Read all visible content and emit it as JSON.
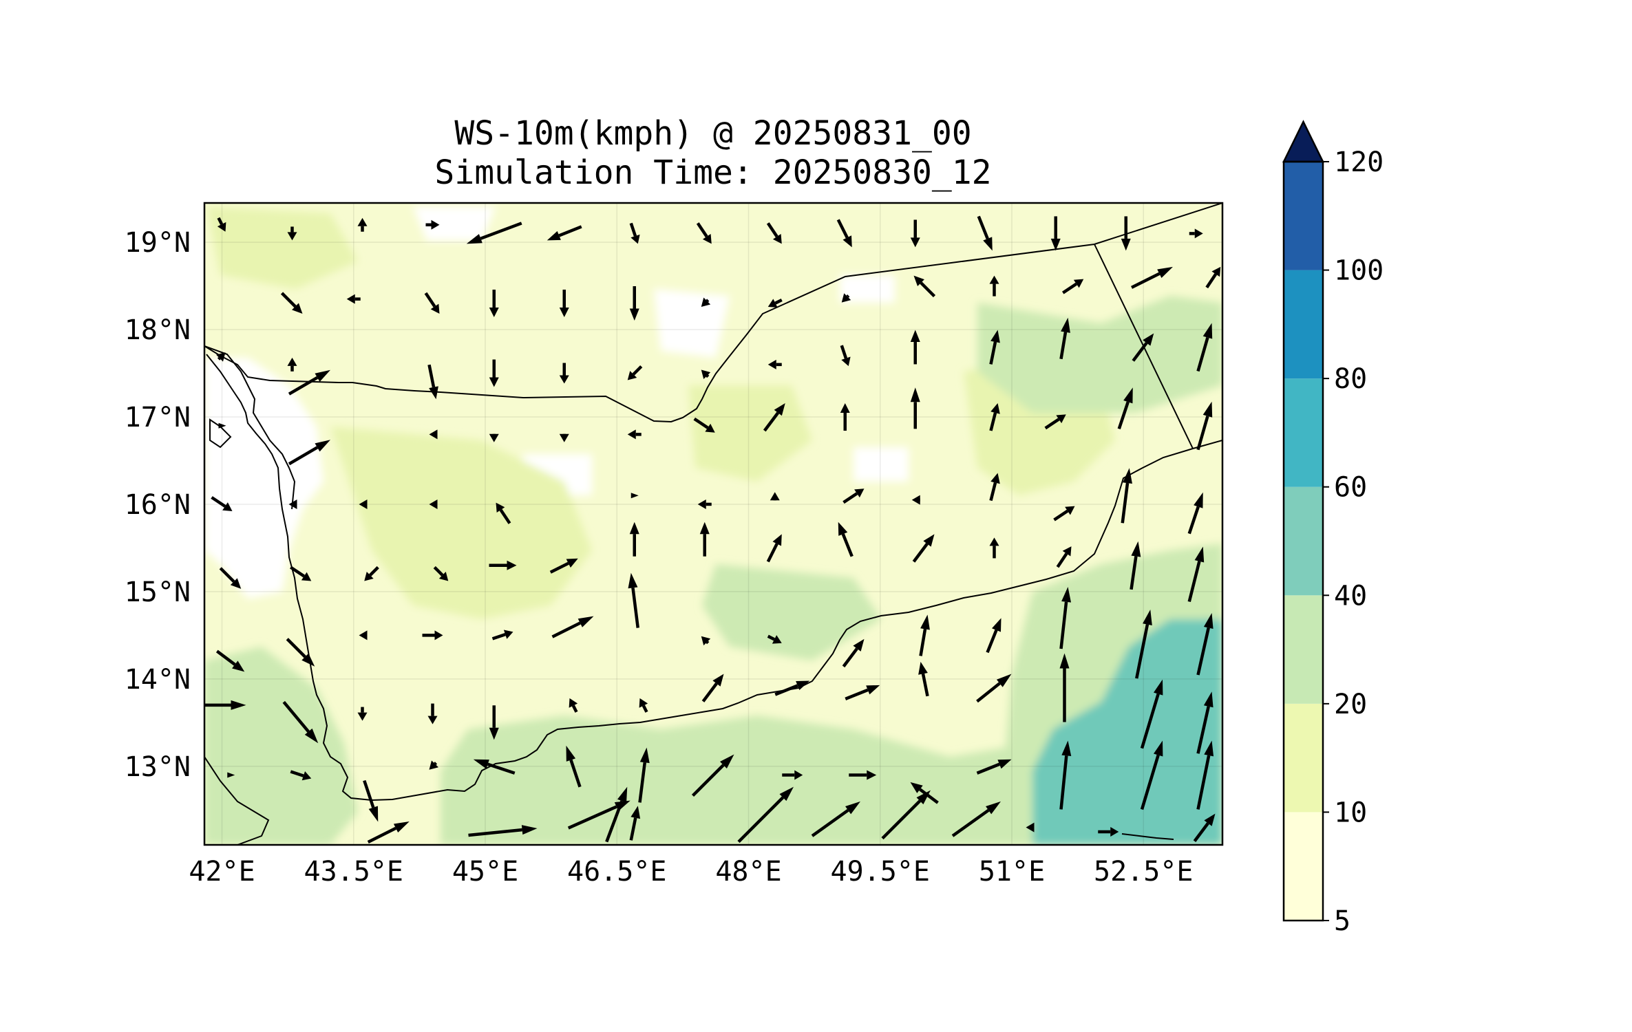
{
  "title": {
    "line1": "WS-10m(kmph) @ 20250831_00",
    "line2": "Simulation Time: 20250830_12"
  },
  "map": {
    "lon_range": [
      41.8,
      53.4
    ],
    "lat_range": [
      12.1,
      19.45
    ],
    "lon_ticks": [
      "42°E",
      "43.5°E",
      "45°E",
      "46.5°E",
      "48°E",
      "49.5°E",
      "51°E",
      "52.5°E"
    ],
    "lat_ticks": [
      "19°N",
      "18°N",
      "17°N",
      "16°N",
      "15°N",
      "14°N",
      "13°N"
    ],
    "grid": true
  },
  "colorbar": {
    "levels": [
      "5",
      "10",
      "20",
      "40",
      "60",
      "80",
      "100",
      "120"
    ],
    "colors": [
      "#ffffd9",
      "#edf8b1",
      "#c7e9b4",
      "#7fcdbb",
      "#41b6c4",
      "#1d91c0",
      "#225ea8",
      "#0c2c84"
    ],
    "extend_color": "#081d58",
    "extend": "max"
  },
  "field_colors": {
    "white": "#ffffff",
    "low": "#f7fbd0",
    "mid": "#e8f4b0",
    "high": "#cdeab3",
    "peak": "#70c9b9"
  },
  "arrow_color": "#000000",
  "chart_data": {
    "type": "heatmap",
    "title": "WS-10m(kmph) @ 20250831_00",
    "subtitle": "Simulation Time: 20250830_12",
    "xlabel": "",
    "ylabel": "",
    "xlim": [
      41.8,
      53.4
    ],
    "ylim": [
      12.1,
      19.45
    ],
    "colorbar_levels": [
      5,
      10,
      20,
      40,
      60,
      80,
      100,
      120
    ],
    "wind_vectors": [
      {
        "lon": 42.0,
        "lat": 19.2,
        "u": 0.1,
        "v": -0.2
      },
      {
        "lon": 42.8,
        "lat": 19.1,
        "u": 0.0,
        "v": -0.2
      },
      {
        "lon": 43.6,
        "lat": 19.2,
        "u": 0.0,
        "v": 0.2
      },
      {
        "lon": 44.4,
        "lat": 19.2,
        "u": 0.2,
        "v": 0.0
      },
      {
        "lon": 45.1,
        "lat": 19.1,
        "u": -0.8,
        "v": -0.3
      },
      {
        "lon": 45.9,
        "lat": 19.1,
        "u": -0.5,
        "v": -0.2
      },
      {
        "lon": 46.7,
        "lat": 19.1,
        "u": 0.1,
        "v": -0.3
      },
      {
        "lon": 47.5,
        "lat": 19.1,
        "u": 0.2,
        "v": -0.3
      },
      {
        "lon": 48.3,
        "lat": 19.1,
        "u": 0.2,
        "v": -0.3
      },
      {
        "lon": 49.1,
        "lat": 19.1,
        "u": 0.2,
        "v": -0.4
      },
      {
        "lon": 49.9,
        "lat": 19.1,
        "u": 0.0,
        "v": -0.4
      },
      {
        "lon": 50.7,
        "lat": 19.1,
        "u": 0.2,
        "v": -0.5
      },
      {
        "lon": 51.5,
        "lat": 19.1,
        "u": 0.0,
        "v": -0.5
      },
      {
        "lon": 52.3,
        "lat": 19.1,
        "u": 0.0,
        "v": -0.5
      },
      {
        "lon": 53.1,
        "lat": 19.1,
        "u": 0.2,
        "v": 0.0
      },
      {
        "lon": 42.8,
        "lat": 18.3,
        "u": 0.3,
        "v": -0.3
      },
      {
        "lon": 43.5,
        "lat": 18.35,
        "u": -0.2,
        "v": 0.0
      },
      {
        "lon": 44.4,
        "lat": 18.3,
        "u": 0.2,
        "v": -0.3
      },
      {
        "lon": 45.1,
        "lat": 18.3,
        "u": 0.0,
        "v": -0.4
      },
      {
        "lon": 45.9,
        "lat": 18.3,
        "u": 0.0,
        "v": -0.4
      },
      {
        "lon": 46.7,
        "lat": 18.3,
        "u": 0.0,
        "v": -0.5
      },
      {
        "lon": 47.5,
        "lat": 18.3,
        "u": -0.1,
        "v": -0.1
      },
      {
        "lon": 48.3,
        "lat": 18.3,
        "u": -0.2,
        "v": -0.1
      },
      {
        "lon": 49.1,
        "lat": 18.35,
        "u": -0.1,
        "v": -0.1
      },
      {
        "lon": 50.0,
        "lat": 18.5,
        "u": -0.3,
        "v": 0.3
      },
      {
        "lon": 50.8,
        "lat": 18.5,
        "u": 0.0,
        "v": 0.3
      },
      {
        "lon": 51.7,
        "lat": 18.5,
        "u": 0.3,
        "v": 0.2
      },
      {
        "lon": 52.6,
        "lat": 18.6,
        "u": 0.6,
        "v": 0.3
      },
      {
        "lon": 53.3,
        "lat": 18.6,
        "u": 0.2,
        "v": 0.3
      },
      {
        "lon": 42.0,
        "lat": 17.7,
        "u": 0.1,
        "v": 0.1
      },
      {
        "lon": 42.8,
        "lat": 17.6,
        "u": 0.0,
        "v": 0.2
      },
      {
        "lon": 43.0,
        "lat": 17.4,
        "u": 0.6,
        "v": 0.35
      },
      {
        "lon": 44.4,
        "lat": 17.4,
        "u": 0.1,
        "v": -0.5
      },
      {
        "lon": 45.1,
        "lat": 17.5,
        "u": 0.0,
        "v": -0.4
      },
      {
        "lon": 45.9,
        "lat": 17.5,
        "u": 0.0,
        "v": -0.3
      },
      {
        "lon": 46.7,
        "lat": 17.5,
        "u": -0.2,
        "v": -0.2
      },
      {
        "lon": 47.5,
        "lat": 17.5,
        "u": -0.1,
        "v": 0.1
      },
      {
        "lon": 48.3,
        "lat": 17.6,
        "u": -0.2,
        "v": 0.0
      },
      {
        "lon": 49.1,
        "lat": 17.7,
        "u": 0.1,
        "v": -0.3
      },
      {
        "lon": 49.9,
        "lat": 17.8,
        "u": 0.0,
        "v": 0.5
      },
      {
        "lon": 50.8,
        "lat": 17.8,
        "u": 0.1,
        "v": 0.5
      },
      {
        "lon": 51.6,
        "lat": 17.9,
        "u": 0.1,
        "v": 0.6
      },
      {
        "lon": 52.5,
        "lat": 17.8,
        "u": 0.3,
        "v": 0.4
      },
      {
        "lon": 53.2,
        "lat": 17.8,
        "u": 0.2,
        "v": 0.7
      },
      {
        "lon": 42.0,
        "lat": 16.9,
        "u": 0.0,
        "v": 0.0
      },
      {
        "lon": 43.0,
        "lat": 16.6,
        "u": 0.6,
        "v": 0.35
      },
      {
        "lon": 44.4,
        "lat": 16.8,
        "u": -0.1,
        "v": 0.0
      },
      {
        "lon": 45.1,
        "lat": 16.75,
        "u": 0.0,
        "v": -0.1
      },
      {
        "lon": 45.9,
        "lat": 16.75,
        "u": 0.0,
        "v": -0.1
      },
      {
        "lon": 46.7,
        "lat": 16.8,
        "u": -0.2,
        "v": 0.0
      },
      {
        "lon": 47.5,
        "lat": 16.9,
        "u": 0.3,
        "v": -0.2
      },
      {
        "lon": 48.3,
        "lat": 17.0,
        "u": 0.3,
        "v": 0.4
      },
      {
        "lon": 49.1,
        "lat": 17.0,
        "u": 0.0,
        "v": 0.4
      },
      {
        "lon": 49.9,
        "lat": 17.1,
        "u": 0.0,
        "v": 0.6
      },
      {
        "lon": 50.8,
        "lat": 17.0,
        "u": 0.1,
        "v": 0.4
      },
      {
        "lon": 51.5,
        "lat": 16.95,
        "u": 0.3,
        "v": 0.2
      },
      {
        "lon": 52.3,
        "lat": 17.1,
        "u": 0.2,
        "v": 0.6
      },
      {
        "lon": 53.2,
        "lat": 16.9,
        "u": 0.2,
        "v": 0.7
      },
      {
        "lon": 42.0,
        "lat": 16.0,
        "u": 0.3,
        "v": -0.2
      },
      {
        "lon": 42.8,
        "lat": 16.0,
        "u": -0.1,
        "v": 0.0
      },
      {
        "lon": 43.6,
        "lat": 16.0,
        "u": -0.1,
        "v": 0.0
      },
      {
        "lon": 44.4,
        "lat": 16.0,
        "u": -0.1,
        "v": 0.0
      },
      {
        "lon": 45.2,
        "lat": 15.9,
        "u": -0.2,
        "v": 0.3
      },
      {
        "lon": 46.7,
        "lat": 16.1,
        "u": 0.0,
        "v": 0.0
      },
      {
        "lon": 47.5,
        "lat": 16.0,
        "u": -0.2,
        "v": 0.0
      },
      {
        "lon": 48.3,
        "lat": 16.1,
        "u": 0.0,
        "v": 0.1
      },
      {
        "lon": 49.2,
        "lat": 16.1,
        "u": 0.3,
        "v": 0.2
      },
      {
        "lon": 49.9,
        "lat": 16.05,
        "u": -0.1,
        "v": 0.0
      },
      {
        "lon": 50.8,
        "lat": 16.2,
        "u": 0.1,
        "v": 0.4
      },
      {
        "lon": 51.6,
        "lat": 15.9,
        "u": 0.3,
        "v": 0.2
      },
      {
        "lon": 52.3,
        "lat": 16.1,
        "u": 0.1,
        "v": 0.8
      },
      {
        "lon": 53.1,
        "lat": 15.9,
        "u": 0.2,
        "v": 0.6
      },
      {
        "lon": 42.1,
        "lat": 15.15,
        "u": 0.3,
        "v": -0.3
      },
      {
        "lon": 42.9,
        "lat": 15.2,
        "u": 0.3,
        "v": -0.2
      },
      {
        "lon": 43.7,
        "lat": 15.2,
        "u": -0.2,
        "v": -0.2
      },
      {
        "lon": 44.5,
        "lat": 15.2,
        "u": 0.2,
        "v": -0.2
      },
      {
        "lon": 45.2,
        "lat": 15.3,
        "u": 0.4,
        "v": 0.0
      },
      {
        "lon": 45.9,
        "lat": 15.3,
        "u": 0.4,
        "v": 0.2
      },
      {
        "lon": 46.7,
        "lat": 15.6,
        "u": 0.0,
        "v": 0.5
      },
      {
        "lon": 47.5,
        "lat": 15.6,
        "u": 0.0,
        "v": 0.5
      },
      {
        "lon": 48.3,
        "lat": 15.5,
        "u": 0.2,
        "v": 0.4
      },
      {
        "lon": 49.1,
        "lat": 15.6,
        "u": -0.2,
        "v": 0.5
      },
      {
        "lon": 50.0,
        "lat": 15.5,
        "u": 0.3,
        "v": 0.4
      },
      {
        "lon": 50.8,
        "lat": 15.5,
        "u": 0.0,
        "v": 0.3
      },
      {
        "lon": 51.6,
        "lat": 15.4,
        "u": 0.2,
        "v": 0.3
      },
      {
        "lon": 52.4,
        "lat": 15.3,
        "u": 0.1,
        "v": 0.7
      },
      {
        "lon": 53.1,
        "lat": 15.2,
        "u": 0.2,
        "v": 0.8
      },
      {
        "lon": 42.1,
        "lat": 14.2,
        "u": 0.4,
        "v": -0.3
      },
      {
        "lon": 42.9,
        "lat": 14.3,
        "u": 0.4,
        "v": -0.4
      },
      {
        "lon": 43.6,
        "lat": 14.5,
        "u": -0.1,
        "v": 0.0
      },
      {
        "lon": 44.4,
        "lat": 14.5,
        "u": 0.3,
        "v": 0.0
      },
      {
        "lon": 45.2,
        "lat": 14.5,
        "u": 0.3,
        "v": 0.1
      },
      {
        "lon": 46.0,
        "lat": 14.6,
        "u": 0.6,
        "v": 0.3
      },
      {
        "lon": 46.7,
        "lat": 14.9,
        "u": -0.1,
        "v": 0.8
      },
      {
        "lon": 47.5,
        "lat": 14.45,
        "u": -0.1,
        "v": 0.1
      },
      {
        "lon": 48.3,
        "lat": 14.45,
        "u": 0.2,
        "v": -0.1
      },
      {
        "lon": 49.2,
        "lat": 14.3,
        "u": 0.3,
        "v": 0.4
      },
      {
        "lon": 50.0,
        "lat": 14.5,
        "u": 0.1,
        "v": 0.6
      },
      {
        "lon": 50.8,
        "lat": 14.5,
        "u": 0.2,
        "v": 0.5
      },
      {
        "lon": 51.6,
        "lat": 14.7,
        "u": 0.1,
        "v": 0.9
      },
      {
        "lon": 52.5,
        "lat": 14.4,
        "u": 0.2,
        "v": 1.0
      },
      {
        "lon": 53.2,
        "lat": 14.4,
        "u": 0.2,
        "v": 0.9
      },
      {
        "lon": 42.0,
        "lat": 13.7,
        "u": 0.7,
        "v": 0.0
      },
      {
        "lon": 42.9,
        "lat": 13.5,
        "u": 0.5,
        "v": -0.6
      },
      {
        "lon": 43.6,
        "lat": 13.6,
        "u": 0.0,
        "v": -0.2
      },
      {
        "lon": 44.4,
        "lat": 13.6,
        "u": 0.0,
        "v": -0.3
      },
      {
        "lon": 45.1,
        "lat": 13.5,
        "u": 0.0,
        "v": -0.5
      },
      {
        "lon": 46.0,
        "lat": 13.7,
        "u": -0.1,
        "v": 0.2
      },
      {
        "lon": 46.8,
        "lat": 13.7,
        "u": -0.1,
        "v": 0.2
      },
      {
        "lon": 47.6,
        "lat": 13.9,
        "u": 0.3,
        "v": 0.4
      },
      {
        "lon": 48.5,
        "lat": 13.9,
        "u": 0.5,
        "v": 0.2
      },
      {
        "lon": 49.3,
        "lat": 13.85,
        "u": 0.5,
        "v": 0.2
      },
      {
        "lon": 50.0,
        "lat": 14.0,
        "u": -0.1,
        "v": 0.5
      },
      {
        "lon": 50.8,
        "lat": 13.9,
        "u": 0.5,
        "v": 0.4
      },
      {
        "lon": 51.6,
        "lat": 13.9,
        "u": 0.0,
        "v": 1.0
      },
      {
        "lon": 52.6,
        "lat": 13.6,
        "u": 0.3,
        "v": 1.0
      },
      {
        "lon": 53.2,
        "lat": 13.5,
        "u": 0.2,
        "v": 0.9
      },
      {
        "lon": 42.1,
        "lat": 12.9,
        "u": 0.0,
        "v": 0.0
      },
      {
        "lon": 42.9,
        "lat": 12.9,
        "u": 0.3,
        "v": -0.1
      },
      {
        "lon": 43.7,
        "lat": 12.6,
        "u": 0.2,
        "v": -0.6
      },
      {
        "lon": 44.4,
        "lat": 13.0,
        "u": -0.1,
        "v": -0.1
      },
      {
        "lon": 45.1,
        "lat": 13.0,
        "u": -0.6,
        "v": 0.2
      },
      {
        "lon": 46.0,
        "lat": 13.0,
        "u": -0.2,
        "v": 0.6
      },
      {
        "lon": 46.8,
        "lat": 12.9,
        "u": 0.1,
        "v": 0.8
      },
      {
        "lon": 47.6,
        "lat": 12.9,
        "u": 0.6,
        "v": 0.6
      },
      {
        "lon": 48.5,
        "lat": 12.9,
        "u": 0.3,
        "v": 0.0
      },
      {
        "lon": 49.3,
        "lat": 12.9,
        "u": 0.4,
        "v": 0.0
      },
      {
        "lon": 50.0,
        "lat": 12.7,
        "u": -0.4,
        "v": 0.3
      },
      {
        "lon": 50.8,
        "lat": 13.0,
        "u": 0.5,
        "v": 0.2
      },
      {
        "lon": 51.6,
        "lat": 12.9,
        "u": 0.1,
        "v": 1.0
      },
      {
        "lon": 52.6,
        "lat": 12.9,
        "u": 0.3,
        "v": 1.0
      },
      {
        "lon": 53.2,
        "lat": 12.9,
        "u": 0.2,
        "v": 1.0
      },
      {
        "lon": 43.9,
        "lat": 12.25,
        "u": 0.6,
        "v": 0.3
      },
      {
        "lon": 45.2,
        "lat": 12.25,
        "u": 1.0,
        "v": 0.1
      },
      {
        "lon": 46.3,
        "lat": 12.45,
        "u": 0.9,
        "v": 0.4
      },
      {
        "lon": 46.5,
        "lat": 12.45,
        "u": 0.3,
        "v": 0.8
      },
      {
        "lon": 46.7,
        "lat": 12.35,
        "u": 0.1,
        "v": 0.5
      },
      {
        "lon": 48.2,
        "lat": 12.45,
        "u": 0.8,
        "v": 0.8
      },
      {
        "lon": 49.0,
        "lat": 12.4,
        "u": 0.7,
        "v": 0.5
      },
      {
        "lon": 49.8,
        "lat": 12.45,
        "u": 0.7,
        "v": 0.7
      },
      {
        "lon": 50.6,
        "lat": 12.4,
        "u": 0.7,
        "v": 0.5
      },
      {
        "lon": 51.2,
        "lat": 12.3,
        "u": -0.1,
        "v": 0.0
      },
      {
        "lon": 52.1,
        "lat": 12.25,
        "u": 0.3,
        "v": 0.0
      },
      {
        "lon": 53.2,
        "lat": 12.3,
        "u": 0.3,
        "v": 0.4
      }
    ]
  }
}
